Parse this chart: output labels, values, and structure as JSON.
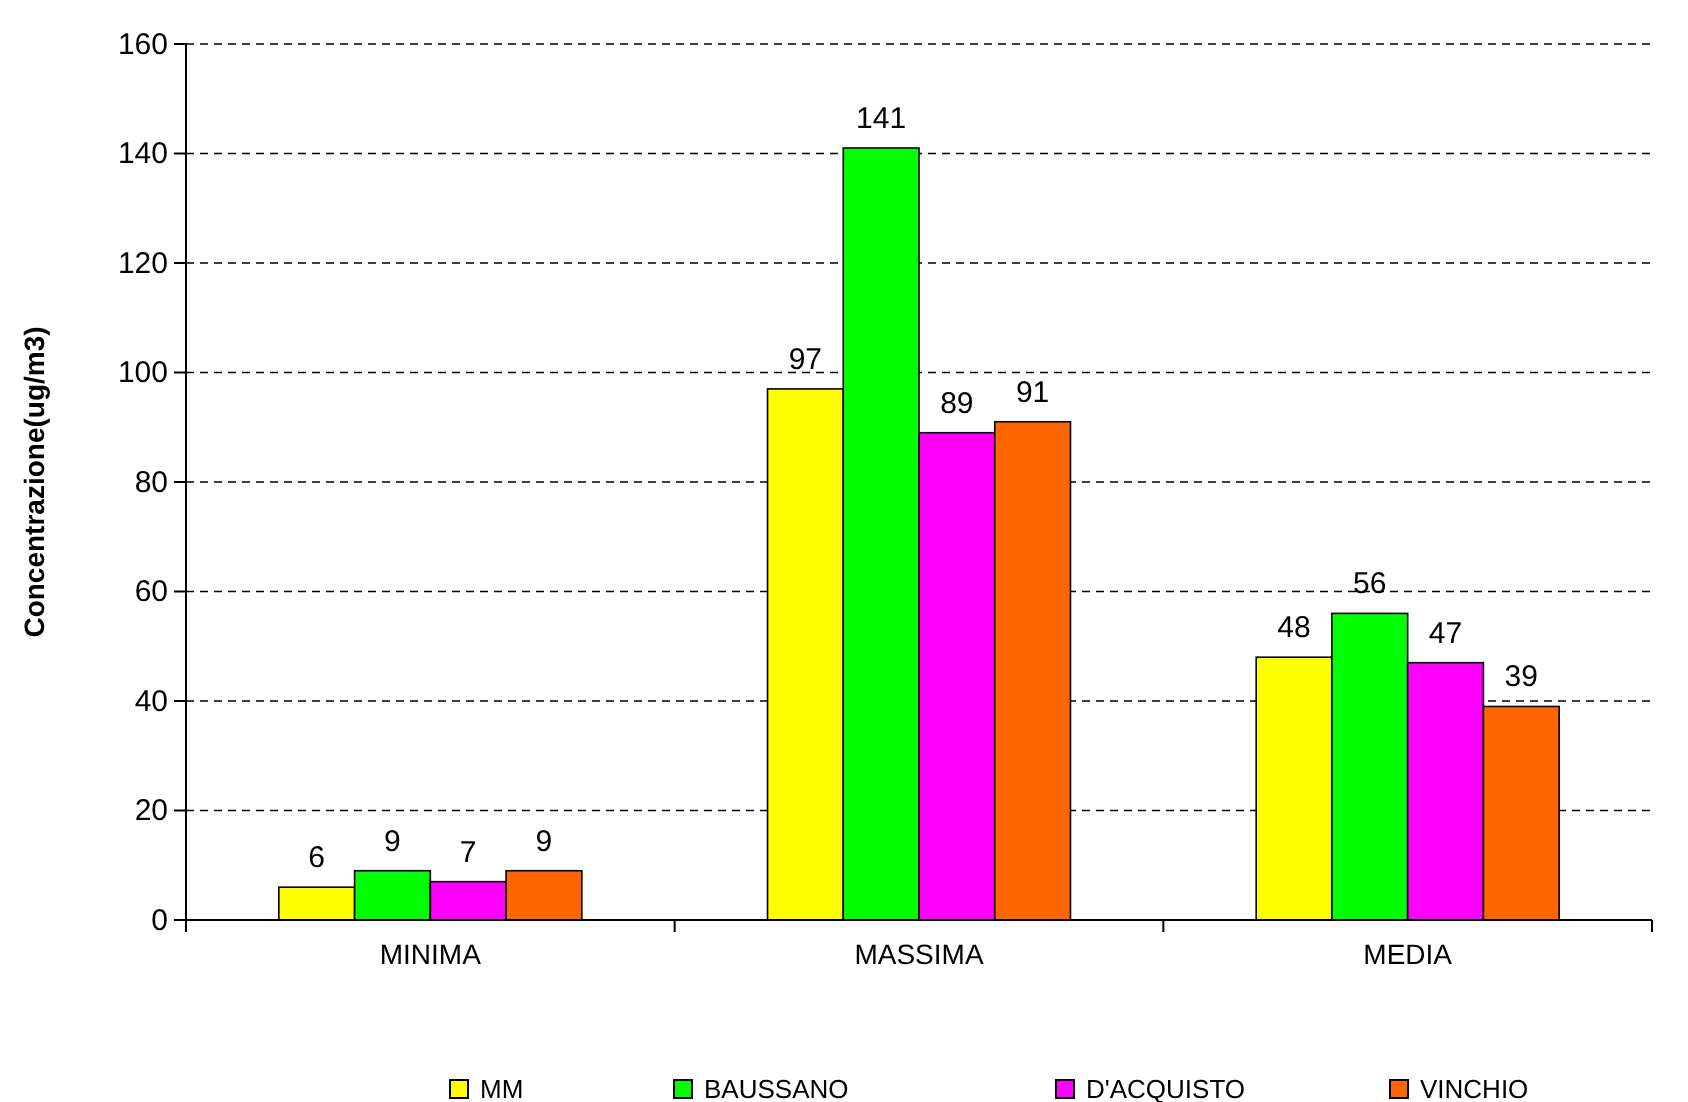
{
  "chart_data": {
    "type": "bar",
    "ylabel": "Concentrazione(ug/m3)",
    "categories": [
      "MINIMA",
      "MASSIMA",
      "MEDIA"
    ],
    "series": [
      {
        "name": "MM",
        "color": "#ffff00",
        "values": [
          6,
          97,
          48
        ]
      },
      {
        "name": "BAUSSANO",
        "color": "#00ff00",
        "values": [
          9,
          141,
          56
        ]
      },
      {
        "name": "D'ACQUISTO",
        "color": "#ff00ff",
        "values": [
          7,
          89,
          47
        ]
      },
      {
        "name": "VINCHIO",
        "color": "#ff6600",
        "values": [
          9,
          91,
          39
        ]
      }
    ],
    "ylim": [
      0,
      160
    ],
    "yticks": [
      0,
      20,
      40,
      60,
      80,
      100,
      120,
      140,
      160
    ],
    "grid": "y",
    "data_labels": true,
    "legend": "bottom"
  }
}
